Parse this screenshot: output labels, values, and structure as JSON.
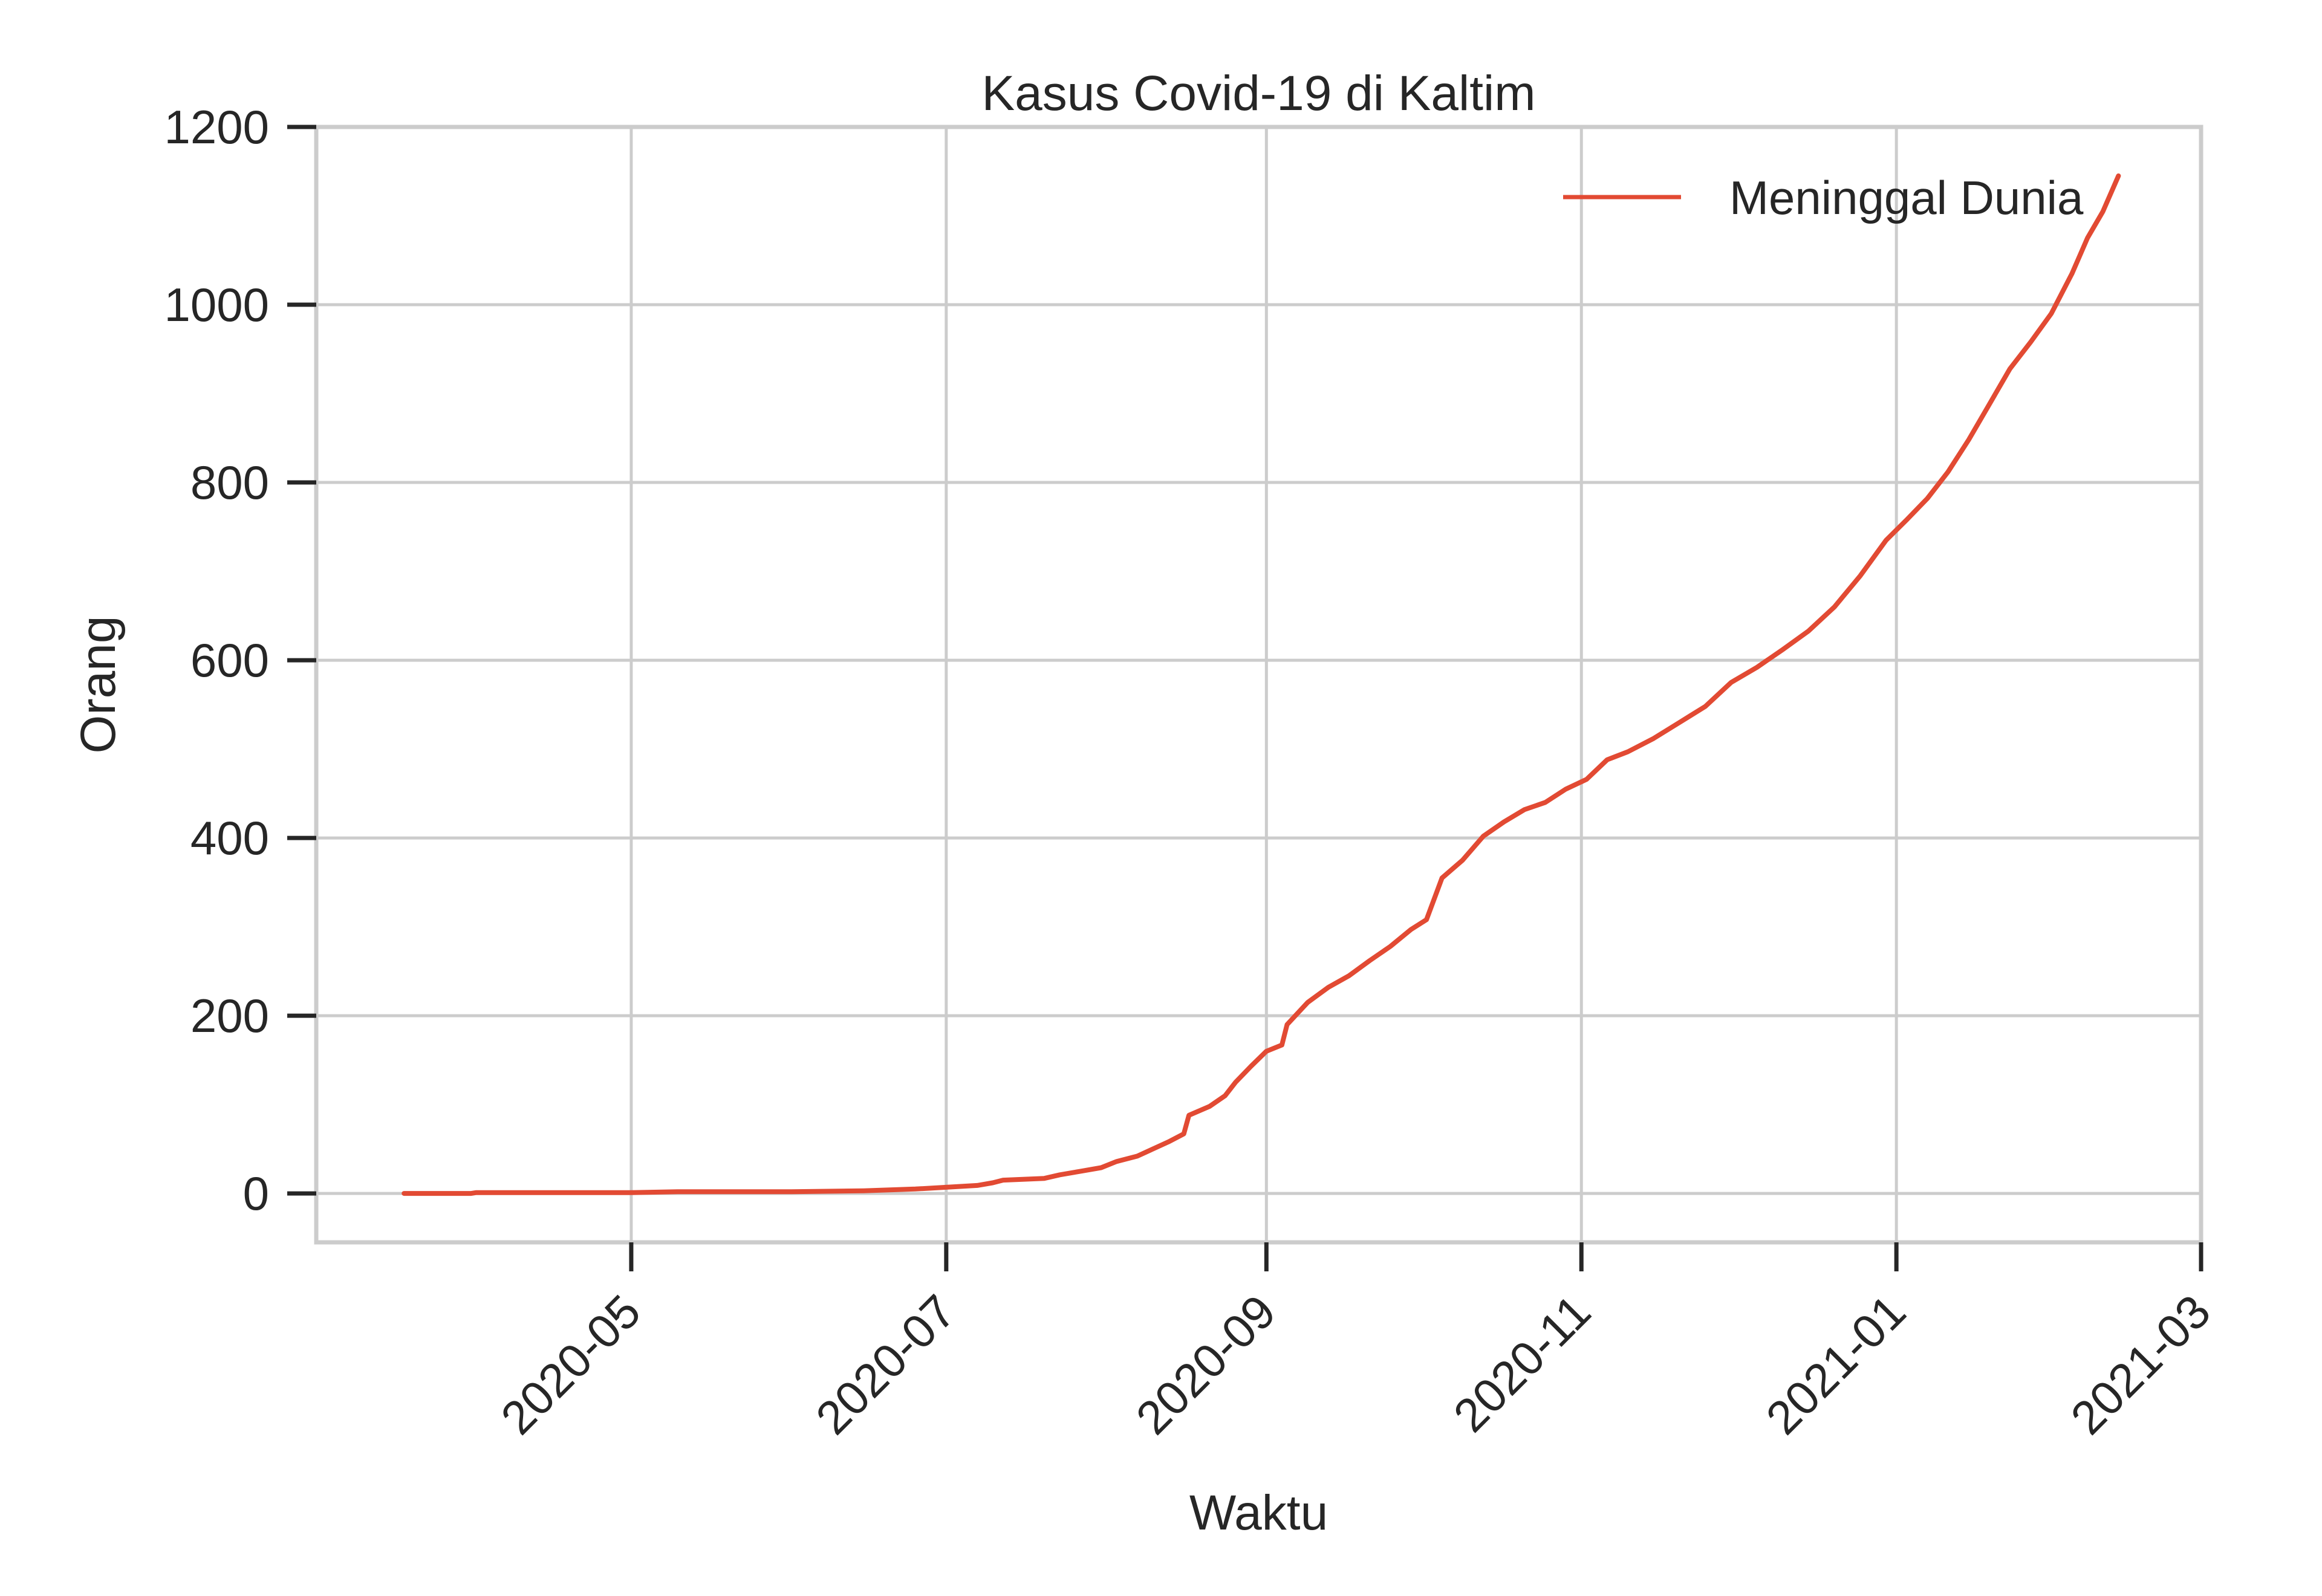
{
  "chart_data": {
    "type": "line",
    "title": "Kasus Covid-19 di Kaltim",
    "xlabel": "Waktu",
    "ylabel": "Orang",
    "x_axis_type": "date",
    "xlim": [
      "2020-03-01",
      "2021-03-01"
    ],
    "ylim": [
      -55,
      1200
    ],
    "y_ticks": [
      0,
      200,
      400,
      600,
      800,
      1000,
      1200
    ],
    "x_ticks": [
      "2020-05-01",
      "2020-07-01",
      "2020-09-01",
      "2020-11-01",
      "2021-01-01",
      "2021-03-01"
    ],
    "x_tick_labels": [
      "2020-05",
      "2020-07",
      "2020-09",
      "2020-11",
      "2021-01",
      "2021-03"
    ],
    "grid": true,
    "legend": {
      "position": "top-right"
    },
    "series": [
      {
        "name": "Meninggal Dunia",
        "color": "#e24a33",
        "points": [
          [
            "2020-03-18",
            0
          ],
          [
            "2020-03-31",
            0
          ],
          [
            "2020-04-01",
            1
          ],
          [
            "2020-04-15",
            1
          ],
          [
            "2020-05-01",
            1
          ],
          [
            "2020-05-10",
            2
          ],
          [
            "2020-05-20",
            2
          ],
          [
            "2020-06-01",
            2
          ],
          [
            "2020-06-15",
            3
          ],
          [
            "2020-06-25",
            5
          ],
          [
            "2020-07-01",
            7
          ],
          [
            "2020-07-07",
            9
          ],
          [
            "2020-07-10",
            12
          ],
          [
            "2020-07-12",
            15
          ],
          [
            "2020-07-20",
            17
          ],
          [
            "2020-07-23",
            21
          ],
          [
            "2020-07-27",
            25
          ],
          [
            "2020-07-31",
            29
          ],
          [
            "2020-08-03",
            36
          ],
          [
            "2020-08-07",
            42
          ],
          [
            "2020-08-10",
            50
          ],
          [
            "2020-08-13",
            58
          ],
          [
            "2020-08-16",
            67
          ],
          [
            "2020-08-17",
            88
          ],
          [
            "2020-08-21",
            98
          ],
          [
            "2020-08-24",
            110
          ],
          [
            "2020-08-26",
            125
          ],
          [
            "2020-08-29",
            143
          ],
          [
            "2020-09-01",
            160
          ],
          [
            "2020-09-04",
            167
          ],
          [
            "2020-09-05",
            190
          ],
          [
            "2020-09-09",
            215
          ],
          [
            "2020-09-13",
            232
          ],
          [
            "2020-09-17",
            245
          ],
          [
            "2020-09-21",
            262
          ],
          [
            "2020-09-25",
            278
          ],
          [
            "2020-09-29",
            297
          ],
          [
            "2020-10-02",
            308
          ],
          [
            "2020-10-05",
            355
          ],
          [
            "2020-10-09",
            375
          ],
          [
            "2020-10-13",
            402
          ],
          [
            "2020-10-17",
            418
          ],
          [
            "2020-10-21",
            432
          ],
          [
            "2020-10-25",
            440
          ],
          [
            "2020-10-29",
            455
          ],
          [
            "2020-11-02",
            466
          ],
          [
            "2020-11-06",
            488
          ],
          [
            "2020-11-10",
            497
          ],
          [
            "2020-11-15",
            512
          ],
          [
            "2020-11-20",
            530
          ],
          [
            "2020-11-25",
            548
          ],
          [
            "2020-11-30",
            575
          ],
          [
            "2020-12-05",
            592
          ],
          [
            "2020-12-10",
            612
          ],
          [
            "2020-12-15",
            633
          ],
          [
            "2020-12-20",
            660
          ],
          [
            "2020-12-25",
            695
          ],
          [
            "2020-12-30",
            735
          ],
          [
            "2021-01-03",
            758
          ],
          [
            "2021-01-07",
            782
          ],
          [
            "2021-01-11",
            812
          ],
          [
            "2021-01-15",
            848
          ],
          [
            "2021-01-19",
            888
          ],
          [
            "2021-01-23",
            928
          ],
          [
            "2021-01-27",
            958
          ],
          [
            "2021-01-31",
            990
          ],
          [
            "2021-02-04",
            1035
          ],
          [
            "2021-02-07",
            1075
          ],
          [
            "2021-02-10",
            1105
          ],
          [
            "2021-02-13",
            1145
          ]
        ]
      }
    ]
  }
}
